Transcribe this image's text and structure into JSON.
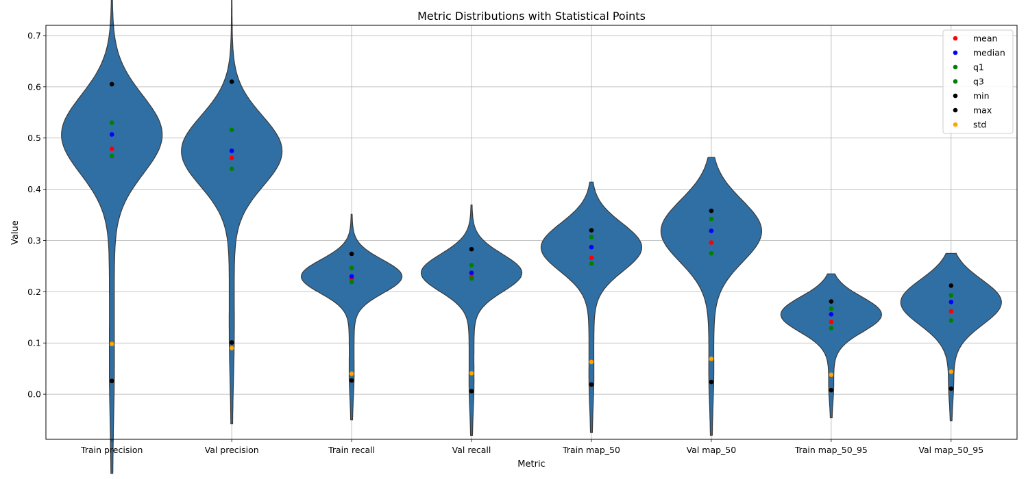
{
  "chart_data": {
    "type": "violin",
    "title": "Metric Distributions with Statistical Points",
    "xlabel": "Metric",
    "ylabel": "Value",
    "ylim": [
      -0.088,
      0.72
    ],
    "yticks": [
      0.0,
      0.1,
      0.2,
      0.3,
      0.4,
      0.5,
      0.6,
      0.7
    ],
    "ytick_labels": [
      "0.0",
      "0.1",
      "0.2",
      "0.3",
      "0.4",
      "0.5",
      "0.6",
      "0.7"
    ],
    "grid": true,
    "legend_position": "top-right",
    "violin_color": "#2f6fa3",
    "categories": [
      "Train precision",
      "Val precision",
      "Train recall",
      "Val recall",
      "Train map_50",
      "Val map_50",
      "Train map_50_95",
      "Val map_50_95"
    ],
    "stats_series": [
      {
        "name": "mean",
        "color": "#ff0000",
        "values": [
          0.479,
          0.461,
          0.225,
          0.23,
          0.266,
          0.296,
          0.141,
          0.162
        ]
      },
      {
        "name": "median",
        "color": "#0000ff",
        "values": [
          0.507,
          0.475,
          0.23,
          0.237,
          0.287,
          0.319,
          0.156,
          0.18
        ]
      },
      {
        "name": "q1",
        "color": "#008000",
        "values": [
          0.465,
          0.44,
          0.219,
          0.226,
          0.255,
          0.275,
          0.129,
          0.144
        ]
      },
      {
        "name": "q3",
        "color": "#008000",
        "values": [
          0.53,
          0.516,
          0.246,
          0.252,
          0.307,
          0.342,
          0.167,
          0.193
        ]
      },
      {
        "name": "min",
        "color": "#000000",
        "values": [
          0.026,
          0.101,
          0.027,
          0.006,
          0.019,
          0.024,
          0.008,
          0.011
        ]
      },
      {
        "name": "max",
        "color": "#000000",
        "values": [
          0.605,
          0.61,
          0.274,
          0.283,
          0.32,
          0.358,
          0.181,
          0.212
        ]
      },
      {
        "name": "std",
        "color": "#ffa500",
        "values": [
          0.098,
          0.09,
          0.04,
          0.041,
          0.063,
          0.069,
          0.038,
          0.044
        ]
      }
    ]
  }
}
